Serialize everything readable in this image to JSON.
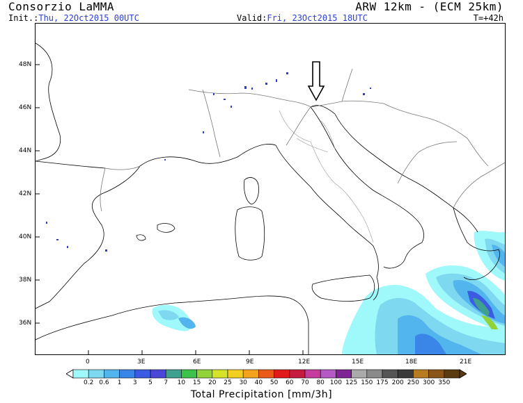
{
  "header": {
    "org": "Consorzio LaMMA",
    "model": "ARW 12km - (ECM 25km)",
    "init_label": "Init.:",
    "init_value": "Thu, 22Oct2015 00UTC",
    "valid_label": "Valid:",
    "valid_value": "Fri, 23Oct2015 18UTC",
    "step": "T=+42h"
  },
  "map": {
    "lat_labels": [
      "48N",
      "46N",
      "44N",
      "42N",
      "40N",
      "38N",
      "36N"
    ],
    "lon_labels": [
      "0",
      "3E",
      "6E",
      "9E",
      "12E",
      "15E",
      "18E",
      "21E"
    ],
    "marker": "down-arrow-icon"
  },
  "legend": {
    "title": "Total Precipitation [mm/3h]",
    "values": [
      "0.2",
      "0.6",
      "1",
      "3",
      "5",
      "7",
      "10",
      "15",
      "20",
      "25",
      "30",
      "40",
      "50",
      "60",
      "70",
      "80",
      "100",
      "125",
      "150",
      "175",
      "200",
      "250",
      "300",
      "350"
    ],
    "colors": [
      "#9ff8fa",
      "#7ed8f0",
      "#53b5ee",
      "#3a86e8",
      "#3a5be2",
      "#4a47d8",
      "#3ea08e",
      "#3cc24a",
      "#93d33a",
      "#d4e32a",
      "#f2cf20",
      "#f2a21d",
      "#ea5b19",
      "#e31a1c",
      "#c51b3f",
      "#c53c9c",
      "#b55ac4",
      "#7f2494",
      "#aaaaaa",
      "#8a8a8a",
      "#555555",
      "#3a3a3a",
      "#b77b20",
      "#8a5418",
      "#5a3a10"
    ]
  }
}
